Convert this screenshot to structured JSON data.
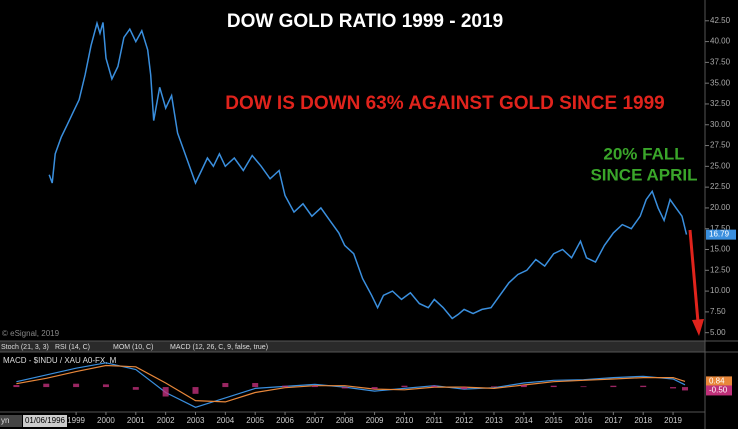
{
  "chart_data": [
    {
      "type": "line",
      "title": "DOW  GOLD RATIO  1999 - 2019",
      "annotations": [
        "DOW IS DOWN 63%  AGAINST GOLD SINCE 1999",
        "20% FALL",
        "SINCE APRIL"
      ],
      "source": "© eSignal, 2019",
      "x": [
        1998.1,
        1998.2,
        1998.3,
        1998.5,
        1998.7,
        1998.9,
        1999.1,
        1999.3,
        1999.5,
        1999.7,
        1999.8,
        1999.9,
        2000.0,
        2000.2,
        2000.4,
        2000.6,
        2000.8,
        2001.0,
        2001.2,
        2001.4,
        2001.5,
        2001.6,
        2001.8,
        2002.0,
        2002.2,
        2002.4,
        2002.6,
        2002.8,
        2003.0,
        2003.2,
        2003.4,
        2003.6,
        2003.8,
        2004.0,
        2004.3,
        2004.6,
        2004.9,
        2005.2,
        2005.5,
        2005.8,
        2006.0,
        2006.3,
        2006.6,
        2006.9,
        2007.2,
        2007.5,
        2007.8,
        2008.0,
        2008.3,
        2008.6,
        2008.9,
        2009.1,
        2009.3,
        2009.6,
        2009.9,
        2010.2,
        2010.5,
        2010.8,
        2011.0,
        2011.3,
        2011.6,
        2011.8,
        2012.0,
        2012.3,
        2012.6,
        2012.9,
        2013.2,
        2013.5,
        2013.8,
        2014.1,
        2014.4,
        2014.7,
        2015.0,
        2015.3,
        2015.6,
        2015.9,
        2016.1,
        2016.4,
        2016.7,
        2017.0,
        2017.3,
        2017.6,
        2017.9,
        2018.1,
        2018.3,
        2018.5,
        2018.7,
        2018.9,
        2019.1,
        2019.3,
        2019.45
      ],
      "series": [
        {
          "color": "#3a8fde",
          "last_label": "16.79",
          "values": [
            24.0,
            23.0,
            26.5,
            28.5,
            30,
            31.5,
            33,
            36,
            39.5,
            42.2,
            41,
            42.3,
            38,
            35.5,
            37,
            40.5,
            41.5,
            40,
            41.3,
            39,
            36,
            30.5,
            34.5,
            32,
            33.5,
            29,
            27,
            25,
            23,
            24.5,
            26,
            25,
            26.5,
            25,
            26,
            24.5,
            26.3,
            25,
            23.5,
            24.5,
            21.5,
            19.5,
            20.5,
            19,
            20,
            18.5,
            17,
            15.5,
            14.5,
            11.5,
            9.5,
            8,
            9.5,
            10,
            9,
            9.8,
            8.5,
            8.0,
            9,
            8,
            6.7,
            7.2,
            7.8,
            7.3,
            7.8,
            8.0,
            9.5,
            11,
            12,
            12.5,
            13.8,
            13,
            14.5,
            15,
            14,
            16,
            14,
            13.5,
            15.5,
            17,
            18,
            17.5,
            19,
            21,
            22,
            20,
            18.5,
            21,
            20,
            19,
            16.79
          ]
        }
      ],
      "xlim": [
        1996.45,
        2020.07
      ],
      "ylim": [
        4.0,
        45.0
      ],
      "yticks": [
        {
          "value": 42.5,
          "label": "42.50"
        },
        {
          "value": 40,
          "label": "40.00"
        },
        {
          "value": 37.5,
          "label": "37.50"
        },
        {
          "value": 35,
          "label": "35.00"
        },
        {
          "value": 32.5,
          "label": "32.50"
        },
        {
          "value": 30,
          "label": "30.00"
        },
        {
          "value": 27.5,
          "label": "27.50"
        },
        {
          "value": 25,
          "label": "25.00"
        },
        {
          "value": 22.5,
          "label": "22.50"
        },
        {
          "value": 20,
          "label": "20.00"
        },
        {
          "value": 17.5,
          "label": "17.50"
        },
        {
          "value": 15,
          "label": "15.00"
        },
        {
          "value": 12.5,
          "label": "12.50"
        },
        {
          "value": 10,
          "label": "10.00"
        },
        {
          "value": 7.5,
          "label": "7.50"
        },
        {
          "value": 5,
          "label": "5.00"
        }
      ]
    },
    {
      "type": "macd",
      "title": "MACD - $INDU / XAU A0-FX, M",
      "tabs": [
        "Stoch (21, 3, 3)",
        "RSI (14, C)",
        "MOM (10, C)",
        "MACD (12, 26, C, 9, false, true)"
      ],
      "start_label": "01/06/1996",
      "corner_text": "yn",
      "x": [
        1997,
        1998,
        1999,
        2000,
        2001,
        2002,
        2003,
        2004,
        2005,
        2006,
        2007,
        2008,
        2009,
        2010,
        2011,
        2012,
        2013,
        2014,
        2015,
        2016,
        2017,
        2018,
        2019,
        2019.4
      ],
      "series": [
        {
          "color": "#3a8fde",
          "values": [
            0.8,
            1.8,
            2.8,
            3.6,
            2.6,
            -0.8,
            -3.0,
            -1.6,
            -0.2,
            0.1,
            0.4,
            0.0,
            -0.6,
            -0.2,
            0.2,
            -0.3,
            -0.1,
            0.6,
            1.0,
            1.1,
            1.4,
            1.6,
            1.2,
            0.34
          ]
        },
        {
          "color": "#e8873a",
          "last_label": "0.84",
          "values": [
            0.5,
            1.3,
            2.3,
            3.2,
            3.0,
            0.6,
            -2.0,
            -2.2,
            -0.8,
            -0.1,
            0.2,
            0.2,
            -0.3,
            -0.4,
            0.0,
            0.0,
            -0.2,
            0.3,
            0.8,
            1.0,
            1.2,
            1.4,
            1.4,
            0.84
          ]
        },
        {
          "color": "#c0307a",
          "type": "bar",
          "last_label": "-0.50",
          "values": [
            0.3,
            0.5,
            0.5,
            0.4,
            -0.4,
            -1.4,
            -1.0,
            0.6,
            0.6,
            0.2,
            0.2,
            -0.2,
            -0.3,
            0.2,
            0.2,
            -0.3,
            0.1,
            0.3,
            0.2,
            0.1,
            0.2,
            0.2,
            -0.2,
            -0.5
          ]
        }
      ],
      "xlim": [
        1996.45,
        2020.07
      ],
      "ylim": [
        -3.4,
        5.2
      ],
      "xticks": [
        1999,
        2000,
        2001,
        2002,
        2003,
        2004,
        2005,
        2006,
        2007,
        2008,
        2009,
        2010,
        2011,
        2012,
        2013,
        2014,
        2015,
        2016,
        2017,
        2018,
        2019
      ]
    }
  ]
}
